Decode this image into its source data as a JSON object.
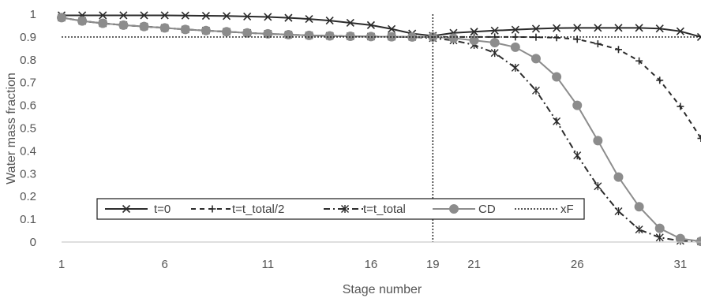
{
  "chart_data": {
    "type": "line",
    "xlabel": "Stage number",
    "ylabel": "Water mass fraction",
    "xlim": [
      1,
      32
    ],
    "ylim": [
      0,
      1
    ],
    "x_ticks": [
      1,
      6,
      11,
      16,
      19,
      21,
      26,
      31
    ],
    "y_ticks": [
      0,
      0.1,
      0.2,
      0.3,
      0.4,
      0.5,
      0.6,
      0.7,
      0.8,
      0.9,
      1
    ],
    "y_tick_labels": [
      "0",
      "0.1",
      "0.2",
      "0.3",
      "0.4",
      "0.5",
      "0.6",
      "0.7",
      "0.8",
      "0.9",
      "1"
    ],
    "grid": false,
    "legend_position": "bottom",
    "series": [
      {
        "name": "t=0",
        "style": "solid",
        "marker": "x",
        "color": "#2b2b2b",
        "x": [
          1,
          2,
          3,
          4,
          5,
          6,
          7,
          8,
          9,
          10,
          11,
          12,
          13,
          14,
          15,
          16,
          17,
          18,
          19,
          20,
          21,
          22,
          23,
          24,
          25,
          26,
          27,
          28,
          29,
          30,
          31,
          32
        ],
        "values": [
          0.995,
          0.995,
          0.995,
          0.995,
          0.995,
          0.995,
          0.994,
          0.993,
          0.992,
          0.99,
          0.988,
          0.984,
          0.979,
          0.972,
          0.962,
          0.952,
          0.935,
          0.915,
          0.905,
          0.918,
          0.923,
          0.928,
          0.932,
          0.936,
          0.939,
          0.94,
          0.94,
          0.94,
          0.94,
          0.937,
          0.925,
          0.9
        ]
      },
      {
        "name": "t=t_total/2",
        "style": "dash",
        "marker": "plus",
        "color": "#2b2b2b",
        "x": [
          1,
          2,
          3,
          4,
          5,
          6,
          7,
          8,
          9,
          10,
          11,
          12,
          13,
          14,
          15,
          16,
          17,
          18,
          19,
          20,
          21,
          22,
          23,
          24,
          25,
          26,
          27,
          28,
          29,
          30,
          31,
          32
        ],
        "values": [
          0.985,
          0.97,
          0.96,
          0.952,
          0.946,
          0.94,
          0.933,
          0.928,
          0.923,
          0.918,
          0.914,
          0.91,
          0.907,
          0.905,
          0.903,
          0.902,
          0.901,
          0.9,
          0.9,
          0.9,
          0.9,
          0.9,
          0.9,
          0.899,
          0.897,
          0.89,
          0.87,
          0.845,
          0.795,
          0.71,
          0.595,
          0.455
        ]
      },
      {
        "name": "t=t_total",
        "style": "dashdot",
        "marker": "asterisk",
        "color": "#2b2b2b",
        "x": [
          1,
          2,
          3,
          4,
          5,
          6,
          7,
          8,
          9,
          10,
          11,
          12,
          13,
          14,
          15,
          16,
          17,
          18,
          19,
          20,
          21,
          22,
          23,
          24,
          25,
          26,
          27,
          28,
          29,
          30,
          31,
          32
        ],
        "values": [
          0.985,
          0.97,
          0.96,
          0.952,
          0.946,
          0.94,
          0.933,
          0.928,
          0.923,
          0.918,
          0.914,
          0.91,
          0.907,
          0.905,
          0.903,
          0.902,
          0.901,
          0.9,
          0.895,
          0.885,
          0.865,
          0.83,
          0.765,
          0.665,
          0.53,
          0.38,
          0.245,
          0.135,
          0.055,
          0.02,
          0.005,
          0.002
        ]
      },
      {
        "name": "CD",
        "style": "solid",
        "marker": "circle",
        "color": "#8c8c8c",
        "x": [
          1,
          2,
          3,
          4,
          5,
          6,
          7,
          8,
          9,
          10,
          11,
          12,
          13,
          14,
          15,
          16,
          17,
          18,
          19,
          20,
          21,
          22,
          23,
          24,
          25,
          26,
          27,
          28,
          29,
          30,
          31,
          32
        ],
        "values": [
          0.985,
          0.97,
          0.96,
          0.952,
          0.946,
          0.94,
          0.933,
          0.928,
          0.923,
          0.918,
          0.914,
          0.91,
          0.907,
          0.905,
          0.903,
          0.902,
          0.901,
          0.9,
          0.9,
          0.895,
          0.885,
          0.875,
          0.855,
          0.805,
          0.725,
          0.6,
          0.445,
          0.285,
          0.155,
          0.06,
          0.015,
          0.003
        ]
      },
      {
        "name": "xF",
        "style": "dotted",
        "marker": "none",
        "color": "#1a1a1a",
        "x": [
          1,
          32
        ],
        "values": [
          0.9,
          0.9
        ]
      }
    ],
    "reference_lines": [
      {
        "orientation": "vertical",
        "x": 19,
        "y_range": [
          0,
          1
        ],
        "style": "dotted"
      }
    ]
  }
}
